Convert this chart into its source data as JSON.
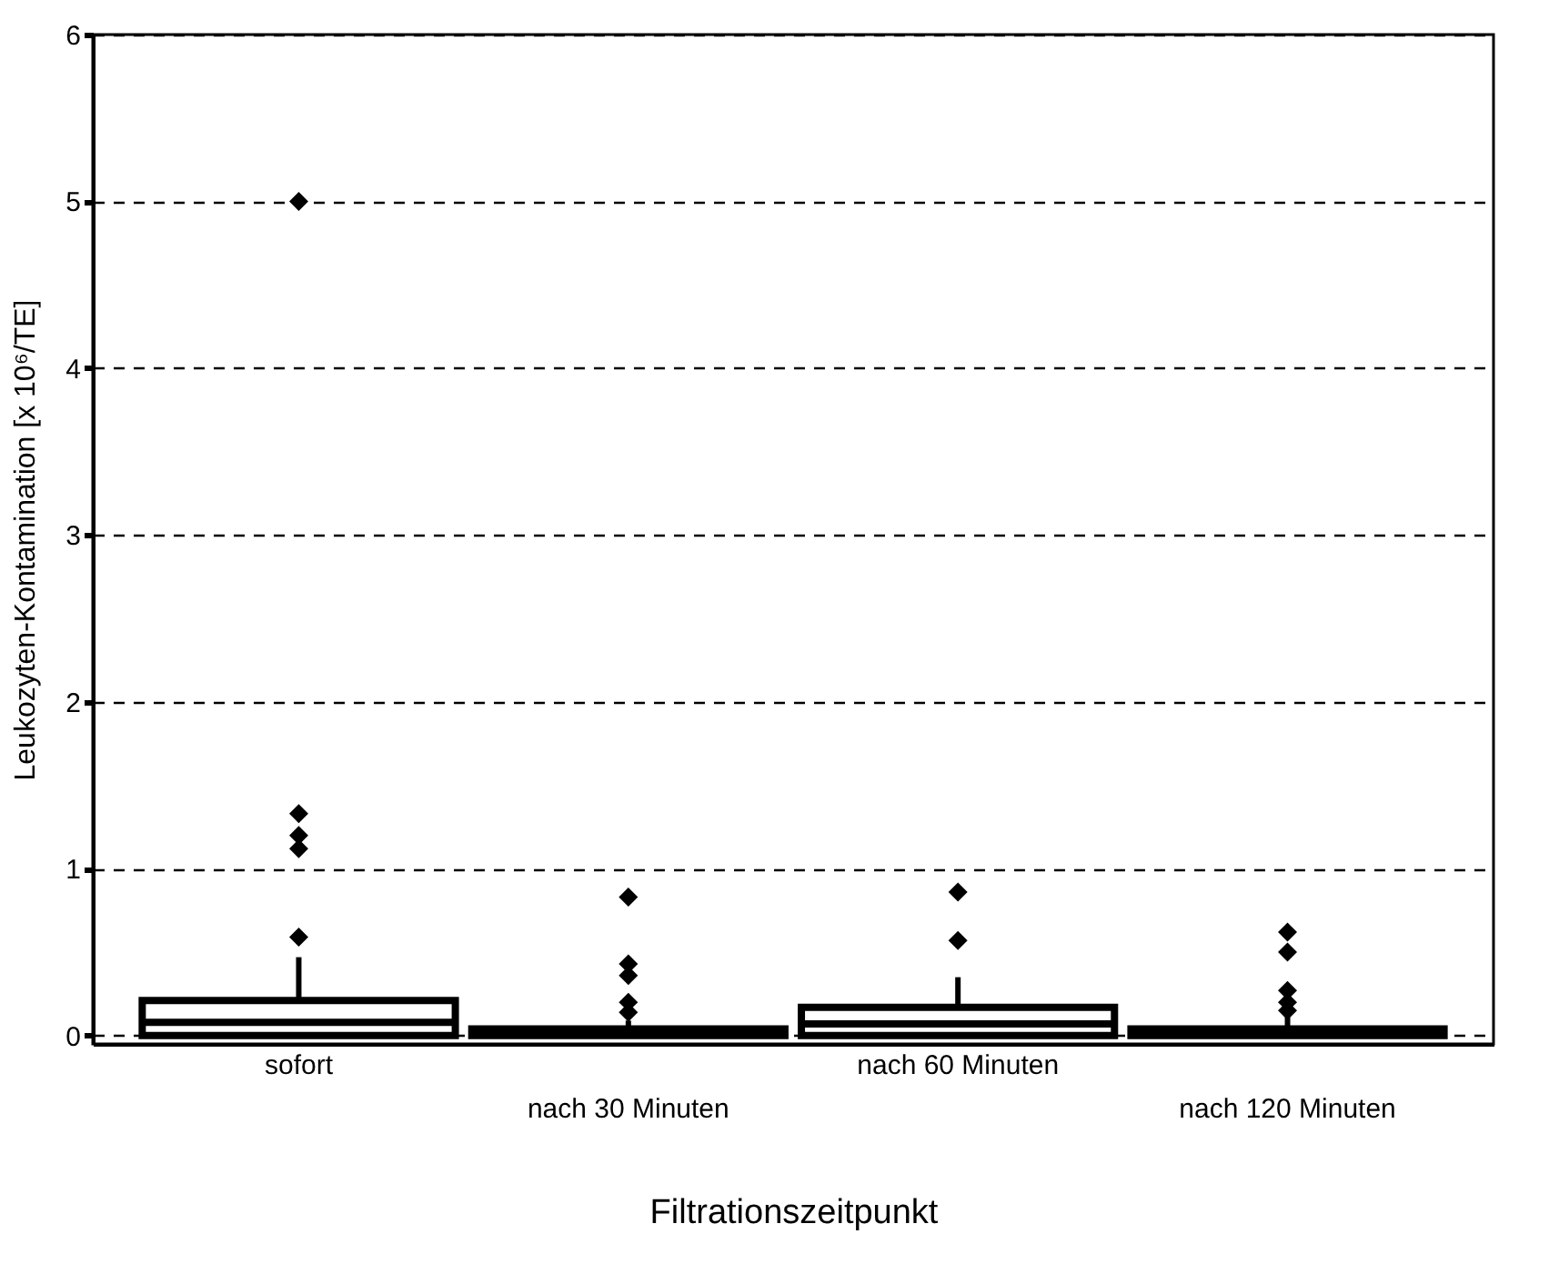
{
  "chart_data": {
    "type": "box",
    "xlabel": "Filtrationszeitpunkt",
    "ylabel": "Leukozyten-Kontamination [x 10⁶/TE]",
    "categories": [
      "sofort",
      "nach 30 Minuten",
      "nach 60 Minuten",
      "nach 120 Minuten"
    ],
    "boxes": [
      {
        "low": 0,
        "q1": 0,
        "median": 0.08,
        "q3": 0.21,
        "high": 0.47,
        "outliers": [
          0.59,
          1.12,
          1.2,
          1.33,
          5.0
        ]
      },
      {
        "low": 0,
        "q1": 0,
        "median": 0.01,
        "q3": 0.04,
        "high": 0.09,
        "outliers": [
          0.14,
          0.2,
          0.36,
          0.43,
          0.83
        ]
      },
      {
        "low": 0,
        "q1": 0,
        "median": 0.07,
        "q3": 0.17,
        "high": 0.35,
        "outliers": [
          0.57,
          0.86
        ]
      },
      {
        "low": 0,
        "q1": 0,
        "median": 0.01,
        "q3": 0.04,
        "high": 0.11,
        "outliers": [
          0.15,
          0.2,
          0.27,
          0.5,
          0.62
        ]
      }
    ],
    "ylim": [
      -0.05,
      6
    ],
    "yticks": [
      0,
      1,
      2,
      3,
      4,
      5,
      6
    ],
    "grid": "y",
    "marker": "diamond"
  }
}
